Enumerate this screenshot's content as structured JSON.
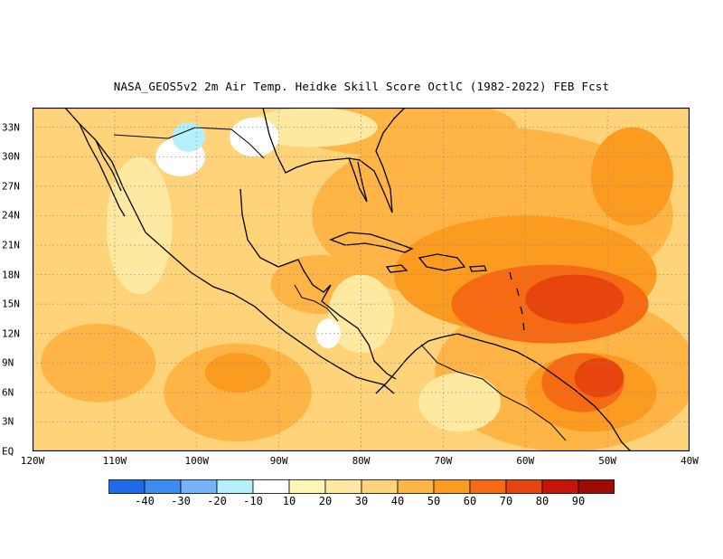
{
  "title": "NASA_GEOS5v2  2m Air Temp. Heidke Skill Score OctlC (1982-2022) FEB Fcst",
  "map": {
    "lon_range": [
      -120,
      -40
    ],
    "lat_range": [
      0,
      35
    ],
    "lat_ticks": [
      {
        "value": 33,
        "label": "33N"
      },
      {
        "value": 30,
        "label": "30N"
      },
      {
        "value": 27,
        "label": "27N"
      },
      {
        "value": 24,
        "label": "24N"
      },
      {
        "value": 21,
        "label": "21N"
      },
      {
        "value": 18,
        "label": "18N"
      },
      {
        "value": 15,
        "label": "15N"
      },
      {
        "value": 12,
        "label": "12N"
      },
      {
        "value": 9,
        "label": "9N"
      },
      {
        "value": 6,
        "label": "6N"
      },
      {
        "value": 3,
        "label": "3N"
      },
      {
        "value": 0,
        "label": "EQ"
      }
    ],
    "lon_ticks": [
      {
        "value": -120,
        "label": "120W"
      },
      {
        "value": -110,
        "label": "110W"
      },
      {
        "value": -100,
        "label": "100W"
      },
      {
        "value": -90,
        "label": "90W"
      },
      {
        "value": -80,
        "label": "80W"
      },
      {
        "value": -70,
        "label": "70W"
      },
      {
        "value": -60,
        "label": "60W"
      },
      {
        "value": -50,
        "label": "50W"
      },
      {
        "value": -40,
        "label": "40W"
      }
    ],
    "background_color": "#fed379",
    "regions": [
      {
        "level": 40,
        "color": "#ffb545",
        "lon": -64,
        "lat": 24,
        "rx": 22,
        "ry": 9
      },
      {
        "level": 40,
        "color": "#ffb545",
        "lon": -55,
        "lat": 8,
        "rx": 16,
        "ry": 8
      },
      {
        "level": 40,
        "color": "#ffb545",
        "lon": -95,
        "lat": 6,
        "rx": 9,
        "ry": 5
      },
      {
        "level": 40,
        "color": "#ffb545",
        "lon": -112,
        "lat": 9,
        "rx": 7,
        "ry": 4
      },
      {
        "level": 40,
        "color": "#ffb545",
        "lon": -75,
        "lat": 33,
        "rx": 14,
        "ry": 3
      },
      {
        "level": 40,
        "color": "#ffb545",
        "lon": -85,
        "lat": 17,
        "rx": 6,
        "ry": 3
      },
      {
        "level": 50,
        "color": "#fb9b20",
        "lon": -60,
        "lat": 18,
        "rx": 16,
        "ry": 6
      },
      {
        "level": 50,
        "color": "#fb9b20",
        "lon": -52,
        "lat": 6,
        "rx": 8,
        "ry": 4
      },
      {
        "level": 50,
        "color": "#fb9b20",
        "lon": -47,
        "lat": 28,
        "rx": 5,
        "ry": 5
      },
      {
        "level": 50,
        "color": "#fb9b20",
        "lon": -95,
        "lat": 8,
        "rx": 4,
        "ry": 2
      },
      {
        "level": 60,
        "color": "#f56a12",
        "lon": -57,
        "lat": 15,
        "rx": 12,
        "ry": 4
      },
      {
        "level": 60,
        "color": "#f56a12",
        "lon": -53,
        "lat": 7,
        "rx": 5,
        "ry": 3
      },
      {
        "level": 70,
        "color": "#e8440e",
        "lon": -54,
        "lat": 15.5,
        "rx": 6,
        "ry": 2.5
      },
      {
        "level": 70,
        "color": "#e8440e",
        "lon": -51,
        "lat": 7.5,
        "rx": 3,
        "ry": 2
      },
      {
        "level": 20,
        "color": "#fee9a0",
        "lon": -86,
        "lat": 33,
        "rx": 8,
        "ry": 2
      },
      {
        "level": 20,
        "color": "#fee9a0",
        "lon": -107,
        "lat": 23,
        "rx": 4,
        "ry": 7
      },
      {
        "level": 20,
        "color": "#fee9a0",
        "lon": -80,
        "lat": 14,
        "rx": 4,
        "ry": 4
      },
      {
        "level": 20,
        "color": "#fee9a0",
        "lon": -68,
        "lat": 5,
        "rx": 5,
        "ry": 3
      },
      {
        "level": 10,
        "color": "#ffffff",
        "lon": -102,
        "lat": 30,
        "rx": 3,
        "ry": 2
      },
      {
        "level": 10,
        "color": "#ffffff",
        "lon": -93,
        "lat": 32,
        "rx": 3,
        "ry": 2
      },
      {
        "level": 10,
        "color": "#ffffff",
        "lon": -84,
        "lat": 12,
        "rx": 1.5,
        "ry": 1.5
      },
      {
        "level": -10,
        "color": "#b4f0fa",
        "lon": -101,
        "lat": 32,
        "rx": 2,
        "ry": 1.5
      }
    ]
  },
  "colorbar": {
    "colors": [
      "#1f6ae8",
      "#3c8bf2",
      "#74b3f8",
      "#b4f0fa",
      "#ffffff",
      "#fff5b4",
      "#fee9a0",
      "#fed379",
      "#ffb545",
      "#fb9b20",
      "#f56a12",
      "#e8440e",
      "#c81408",
      "#a00a05"
    ],
    "labels": [
      "-40",
      "-30",
      "-20",
      "-10",
      "10",
      "20",
      "30",
      "40",
      "50",
      "60",
      "70",
      "80",
      "90"
    ]
  }
}
